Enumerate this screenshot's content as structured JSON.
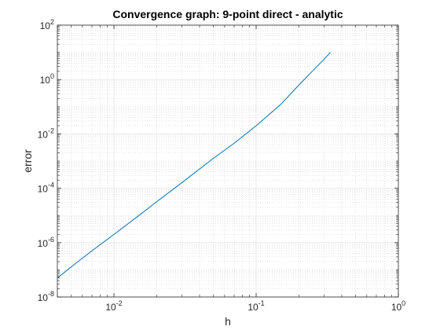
{
  "chart_data": {
    "type": "line",
    "title": "Convergence graph: 9-point direct - analytic",
    "xlabel": "h",
    "ylabel": "error",
    "xscale": "log",
    "yscale": "log",
    "xlim": [
      0.004,
      1
    ],
    "ylim": [
      1e-08,
      100
    ],
    "grid": true,
    "minor_grid": true,
    "legend": "none",
    "x_ticks": [
      {
        "value": 0.01,
        "base": "10",
        "exp": "-2"
      },
      {
        "value": 0.1,
        "base": "10",
        "exp": "-1"
      },
      {
        "value": 1,
        "base": "10",
        "exp": "0"
      }
    ],
    "y_ticks": [
      {
        "value": 1e-08,
        "base": "10",
        "exp": "-8"
      },
      {
        "value": 1e-06,
        "base": "10",
        "exp": "-6"
      },
      {
        "value": 0.0001,
        "base": "10",
        "exp": "-4"
      },
      {
        "value": 0.01,
        "base": "10",
        "exp": "-2"
      },
      {
        "value": 1,
        "base": "10",
        "exp": "0"
      },
      {
        "value": 100,
        "base": "10",
        "exp": "2"
      }
    ],
    "series": [
      {
        "color": "#0072BD",
        "x": [
          0.004,
          0.00528,
          0.007,
          0.01,
          0.015,
          0.02,
          0.03,
          0.05,
          0.07,
          0.1,
          0.15,
          0.2,
          0.25,
          0.3,
          0.333
        ],
        "y": [
          5e-08,
          1.6e-07,
          5e-07,
          2e-06,
          1e-05,
          3.2e-05,
          0.00016,
          0.00126,
          0.0045,
          0.02,
          0.126,
          0.63,
          2.1,
          5.5,
          10
        ]
      }
    ]
  }
}
